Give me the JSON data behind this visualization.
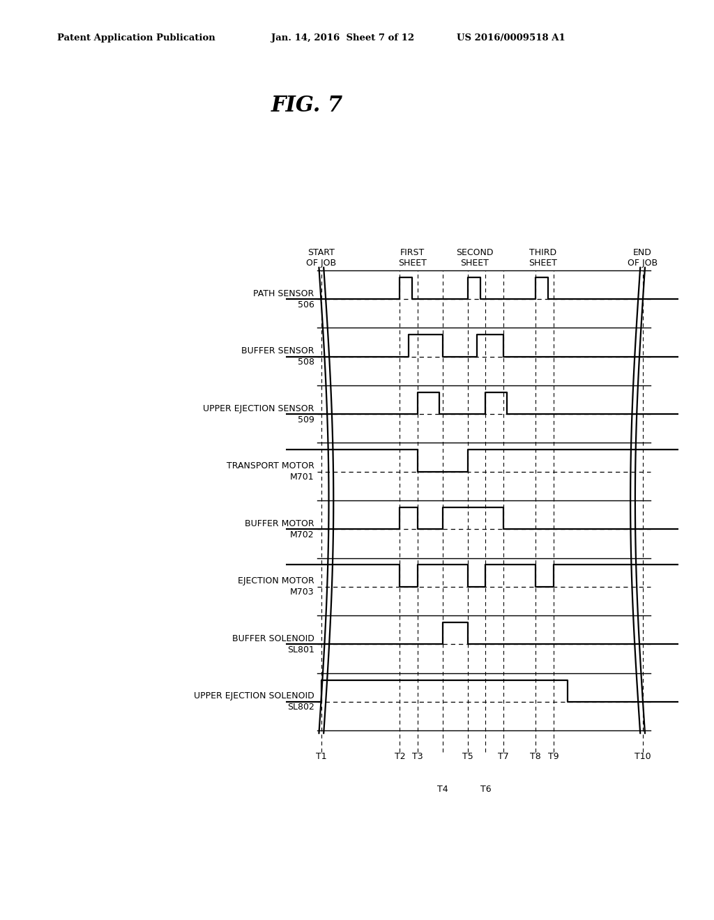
{
  "background_color": "#ffffff",
  "header_left": "Patent Application Publication",
  "header_mid": "Jan. 14, 2016  Sheet 7 of 12",
  "header_right": "US 2016/0009518 A1",
  "fig_title": "FIG. 7",
  "signal_labels": [
    "PATH SENSOR\n506",
    "BUFFER SENSOR\n508",
    "UPPER EJECTION SENSOR\n509",
    "TRANSPORT MOTOR\nM701",
    "BUFFER MOTOR\nM702",
    "EJECTION MOTOR\nM703",
    "BUFFER SOLENOID\nSL801",
    "UPPER EJECTION SOLENOID\nSL802"
  ],
  "col_headers": [
    [
      "START",
      "OF JOB"
    ],
    [
      "FIRST",
      "SHEET"
    ],
    [
      "SECOND",
      "SHEET"
    ],
    [
      "THIRD",
      "SHEET"
    ],
    [
      "END",
      "OF JOB"
    ]
  ],
  "t_labels_row1": [
    "T1",
    "T2",
    "T3",
    "T5",
    "T7",
    "T8",
    "T9",
    "T10"
  ],
  "t_labels_row2": [
    "T4",
    "T6"
  ],
  "t_positions": [
    1.0,
    3.2,
    3.7,
    4.4,
    5.1,
    5.6,
    6.1,
    7.0,
    7.5,
    10.0
  ],
  "t_max": 11.0
}
